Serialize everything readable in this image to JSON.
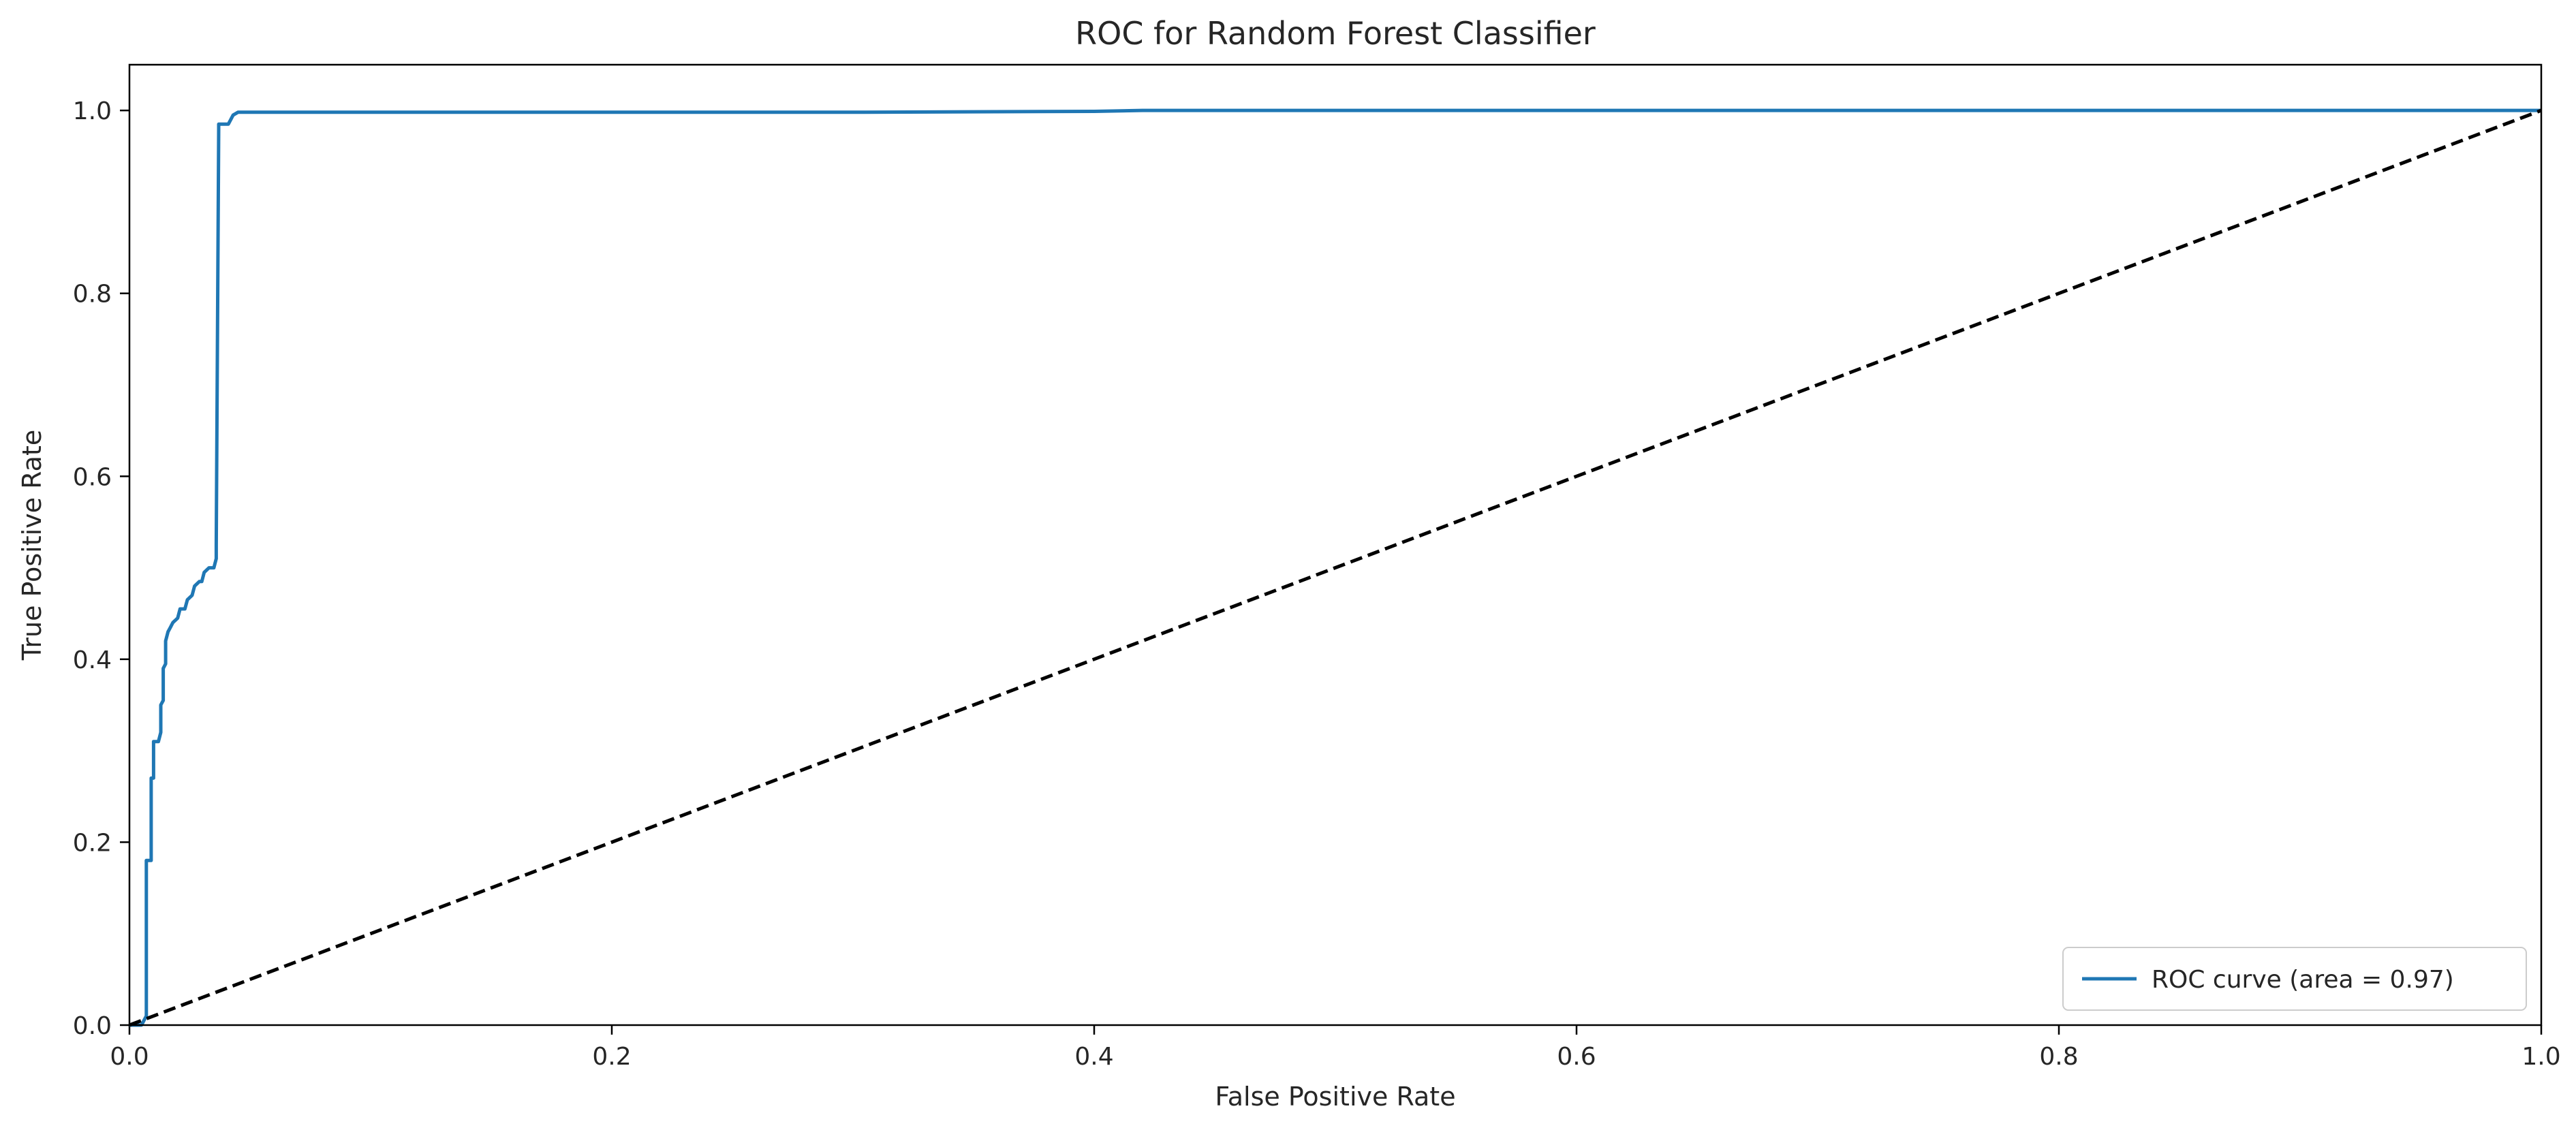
{
  "chart_data": {
    "type": "line",
    "title": "ROC for Random Forest Classifier",
    "xlabel": "False Positive Rate",
    "ylabel": "True Positive Rate",
    "xlim": [
      0.0,
      1.0
    ],
    "ylim": [
      0.0,
      1.05
    ],
    "x_ticks": [
      "0.0",
      "0.2",
      "0.4",
      "0.6",
      "0.8",
      "1.0"
    ],
    "y_ticks": [
      "0.0",
      "0.2",
      "0.4",
      "0.6",
      "0.8",
      "1.0"
    ],
    "grid": false,
    "legend_position": "bottom-right",
    "series": [
      {
        "name": "ROC curve (area = 0.97)",
        "color": "#1f77b4",
        "style": "solid",
        "points": [
          [
            0.0,
            0.0
          ],
          [
            0.005,
            0.0
          ],
          [
            0.006,
            0.005
          ],
          [
            0.007,
            0.01
          ],
          [
            0.007,
            0.18
          ],
          [
            0.009,
            0.18
          ],
          [
            0.009,
            0.27
          ],
          [
            0.01,
            0.27
          ],
          [
            0.01,
            0.31
          ],
          [
            0.012,
            0.31
          ],
          [
            0.013,
            0.32
          ],
          [
            0.013,
            0.35
          ],
          [
            0.014,
            0.355
          ],
          [
            0.014,
            0.39
          ],
          [
            0.015,
            0.395
          ],
          [
            0.015,
            0.42
          ],
          [
            0.016,
            0.43
          ],
          [
            0.017,
            0.435
          ],
          [
            0.018,
            0.44
          ],
          [
            0.02,
            0.445
          ],
          [
            0.021,
            0.455
          ],
          [
            0.023,
            0.455
          ],
          [
            0.024,
            0.465
          ],
          [
            0.026,
            0.47
          ],
          [
            0.027,
            0.48
          ],
          [
            0.029,
            0.485
          ],
          [
            0.03,
            0.485
          ],
          [
            0.031,
            0.495
          ],
          [
            0.033,
            0.5
          ],
          [
            0.035,
            0.5
          ],
          [
            0.036,
            0.51
          ],
          [
            0.036,
            0.525
          ],
          [
            0.037,
            0.98
          ],
          [
            0.037,
            0.985
          ],
          [
            0.041,
            0.985
          ],
          [
            0.042,
            0.99
          ],
          [
            0.043,
            0.995
          ],
          [
            0.045,
            0.998
          ],
          [
            0.05,
            0.998
          ],
          [
            0.1,
            0.998
          ],
          [
            0.3,
            0.998
          ],
          [
            0.4,
            0.999
          ],
          [
            0.42,
            1.0
          ],
          [
            1.0,
            1.0
          ]
        ]
      },
      {
        "name": "",
        "color": "#000000",
        "style": "dashed",
        "points": [
          [
            0.0,
            0.0
          ],
          [
            1.0,
            1.0
          ]
        ]
      }
    ]
  }
}
